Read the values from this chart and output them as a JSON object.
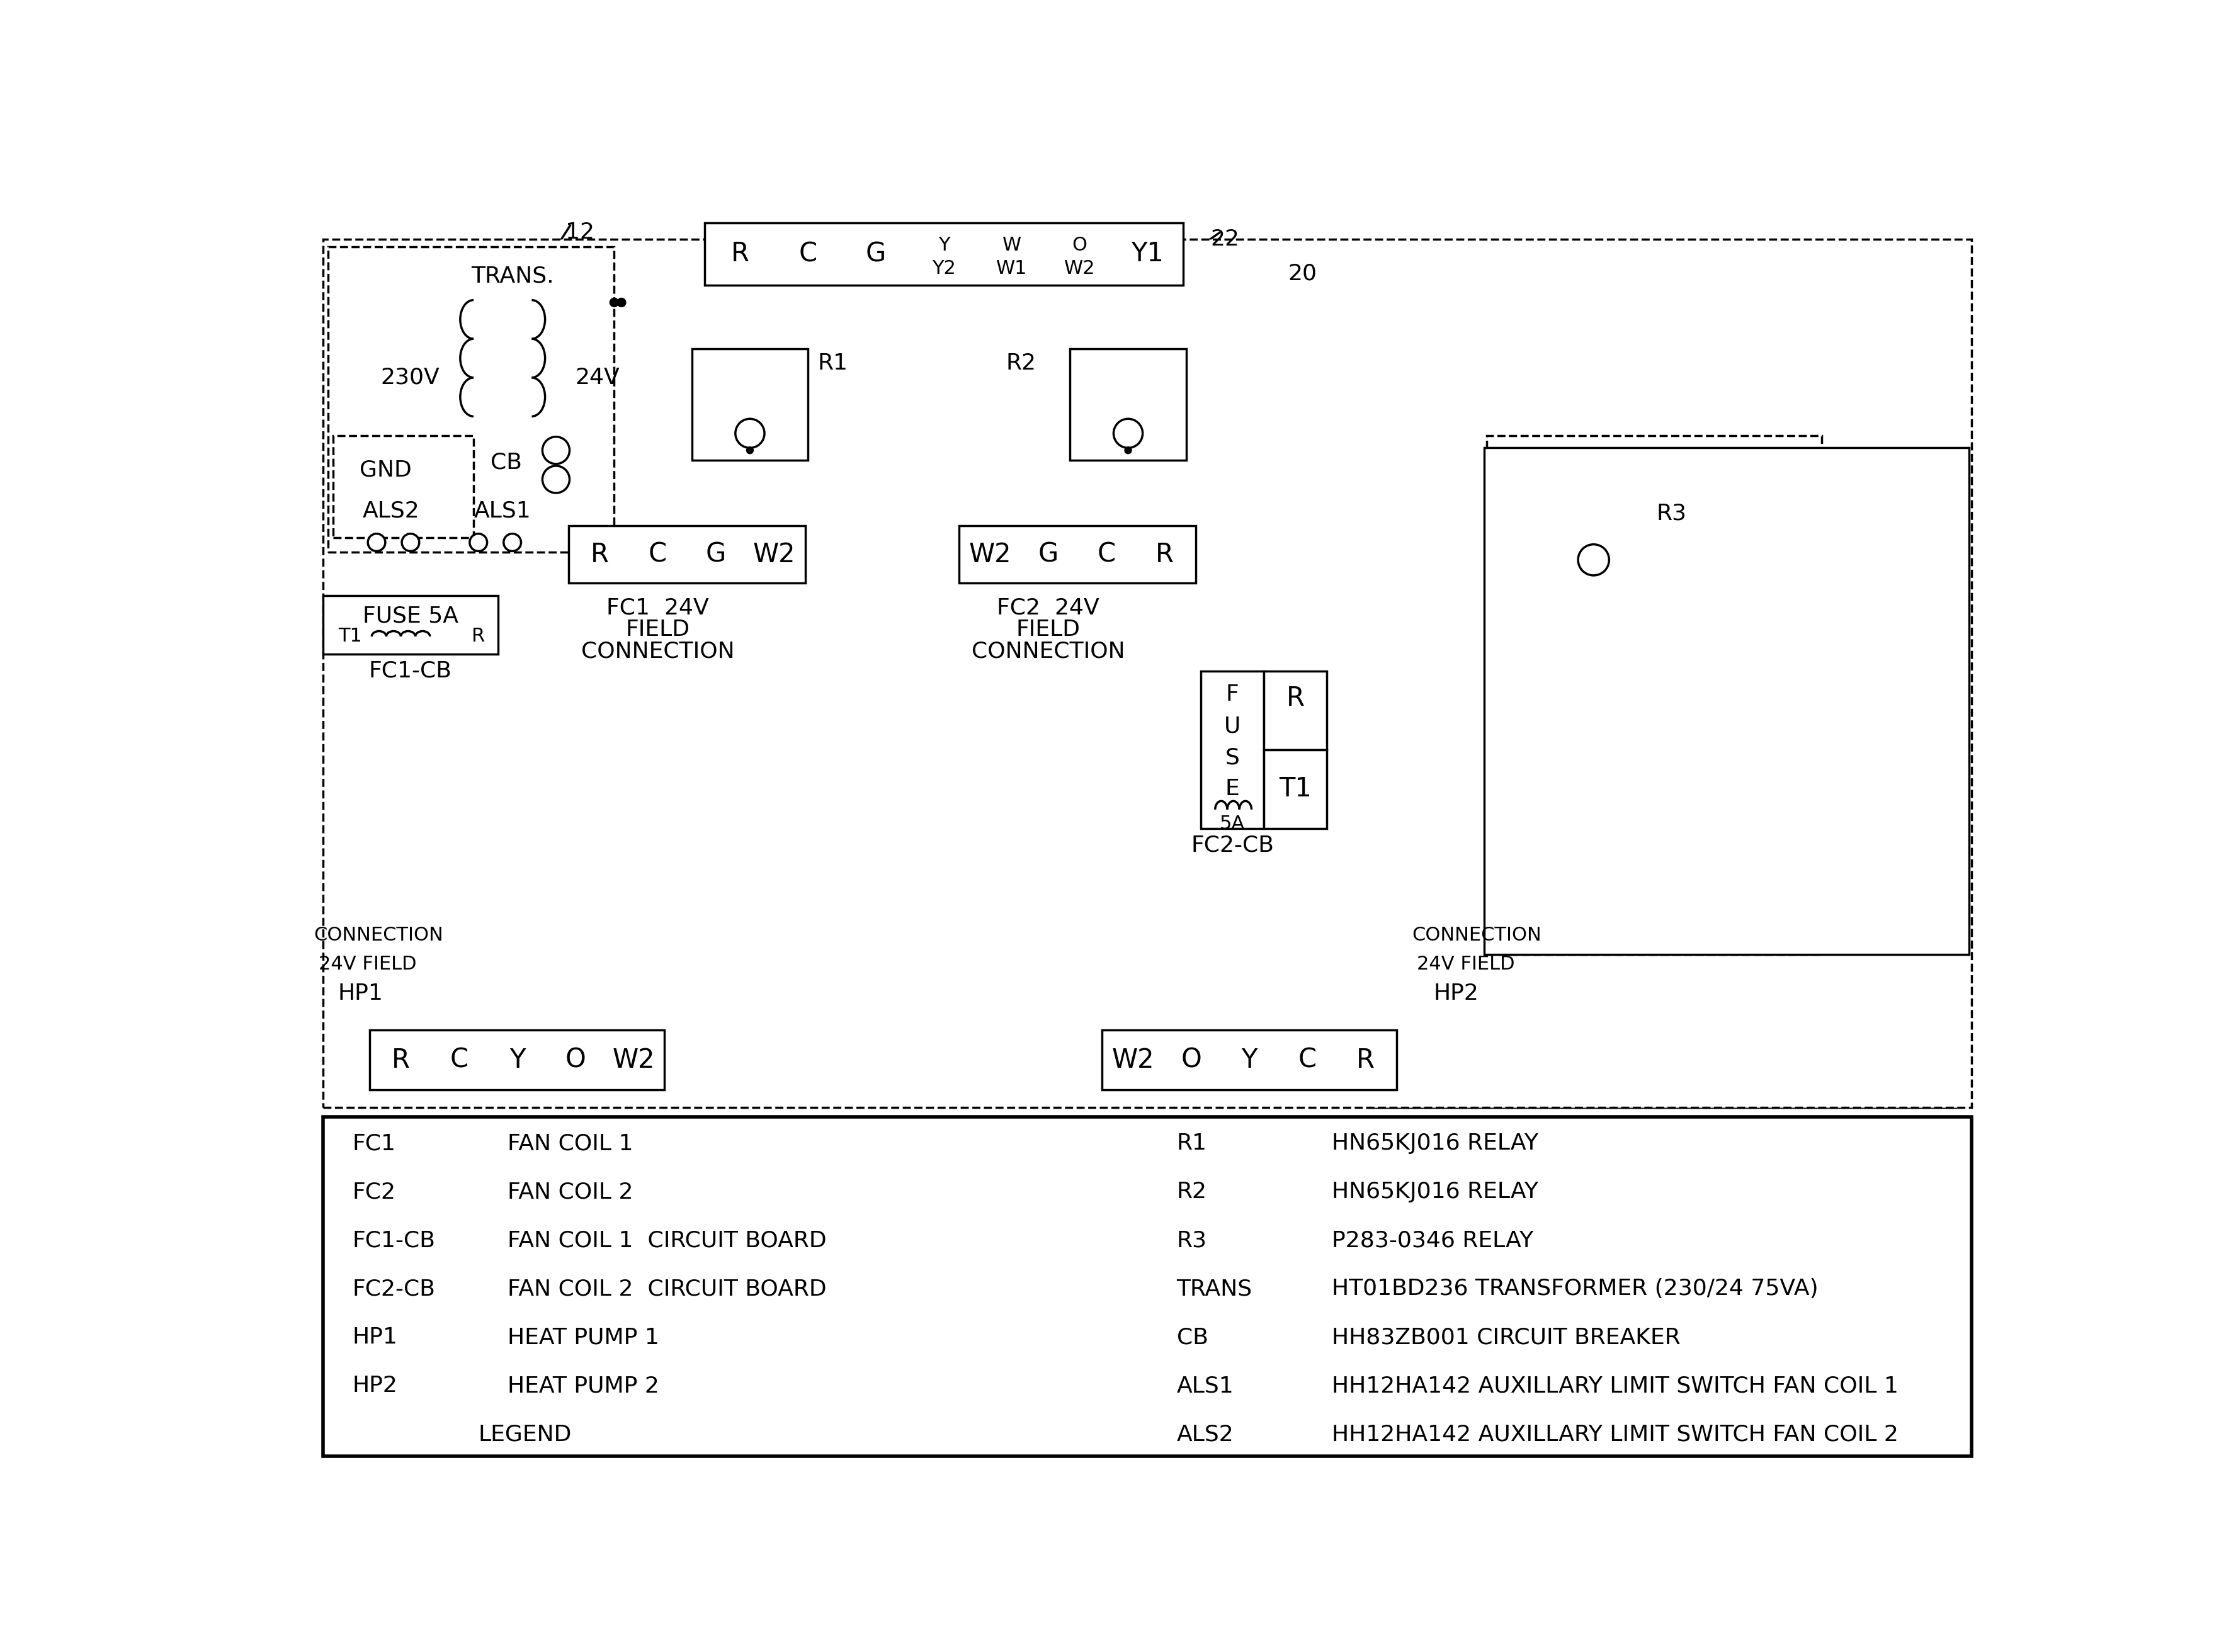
{
  "bg_color": "#ffffff",
  "line_color": "#000000",
  "legend_left": [
    [
      "FC1",
      "FAN COIL 1"
    ],
    [
      "FC2",
      "FAN COIL 2"
    ],
    [
      "FC1-CB",
      "FAN COIL 1  CIRCUIT BOARD"
    ],
    [
      "FC2-CB",
      "FAN COIL 2  CIRCUIT BOARD"
    ],
    [
      "HP1",
      "HEAT PUMP 1"
    ],
    [
      "HP2",
      "HEAT PUMP 2"
    ],
    [
      "",
      "LEGEND"
    ]
  ],
  "legend_right": [
    [
      "R1",
      "HN65KJ016 RELAY"
    ],
    [
      "R2",
      "HN65KJ016 RELAY"
    ],
    [
      "R3",
      "P283-0346 RELAY"
    ],
    [
      "TRANS",
      "HT01BD236 TRANSFORMER (230/24 75VA)"
    ],
    [
      "CB",
      "HH83ZB001 CIRCUIT BREAKER"
    ],
    [
      "ALS1",
      "HH12HA142 AUXILLARY LIMIT SWITCH FAN COIL 1"
    ],
    [
      "ALS2",
      "HH12HA142 AUXILLARY LIMIT SWITCH FAN COIL 2"
    ]
  ],
  "connector22_labels": [
    "R",
    "C",
    "G",
    "Y/Y2",
    "W/W1",
    "O/W2",
    "Y1"
  ],
  "fc1_labels": [
    "R",
    "C",
    "G",
    "W2"
  ],
  "fc2_labels": [
    "W2",
    "G",
    "C",
    "R"
  ],
  "hp1_labels": [
    "R",
    "C",
    "Y",
    "O",
    "W2"
  ],
  "hp2_labels": [
    "W2",
    "O",
    "Y",
    "C",
    "R"
  ]
}
